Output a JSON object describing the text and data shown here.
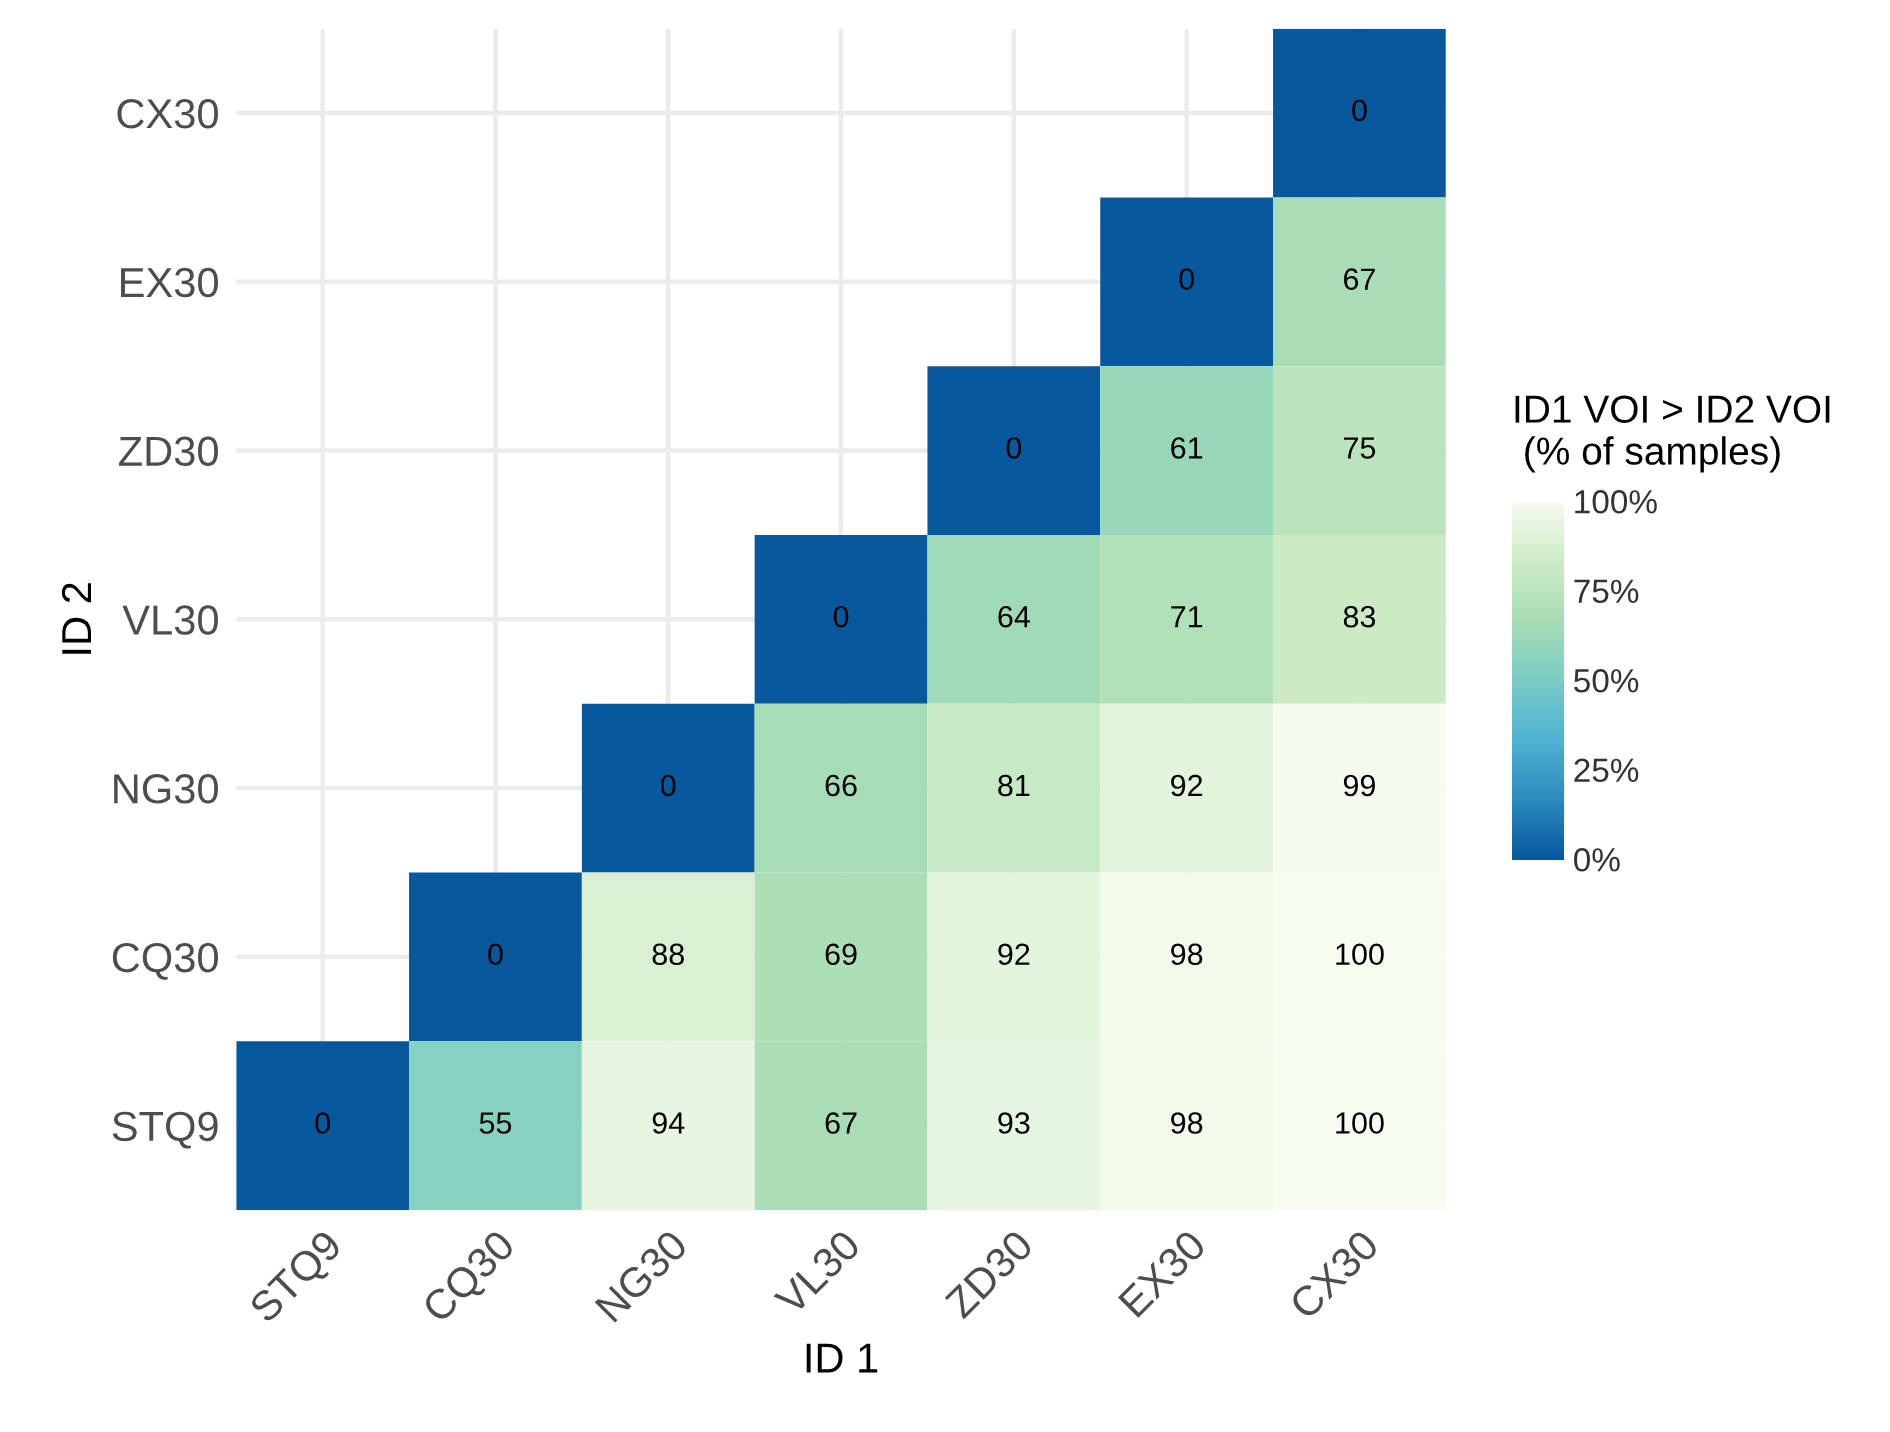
{
  "chart_data": {
    "type": "heatmap",
    "xlabel": "ID 1",
    "ylabel": "ID 2",
    "clabel": "ID1 VOI > ID2 VOI\n (% of samples)",
    "categories": [
      "STQ9",
      "CQ30",
      "NG30",
      "VL30",
      "ZD30",
      "EX30",
      "CX30"
    ],
    "y_categories": [
      "CX30",
      "EX30",
      "ZD30",
      "VL30",
      "NG30",
      "CQ30",
      "STQ9"
    ],
    "cells": [
      [
        null,
        null,
        null,
        null,
        null,
        null,
        0
      ],
      [
        null,
        null,
        null,
        null,
        null,
        0,
        67
      ],
      [
        null,
        null,
        null,
        null,
        0,
        61,
        75
      ],
      [
        null,
        null,
        null,
        0,
        64,
        71,
        83
      ],
      [
        null,
        null,
        0,
        66,
        81,
        92,
        99
      ],
      [
        null,
        0,
        88,
        69,
        92,
        98,
        100
      ],
      [
        0,
        55,
        94,
        67,
        93,
        98,
        100
      ]
    ],
    "clim": [
      0,
      100
    ],
    "cticks": [
      {
        "value": 0,
        "label": "0%"
      },
      {
        "value": 25,
        "label": "25%"
      },
      {
        "value": 50,
        "label": "50%"
      },
      {
        "value": 75,
        "label": "75%"
      },
      {
        "value": 100,
        "label": "100%"
      }
    ],
    "data_labels": true,
    "grid": true
  }
}
